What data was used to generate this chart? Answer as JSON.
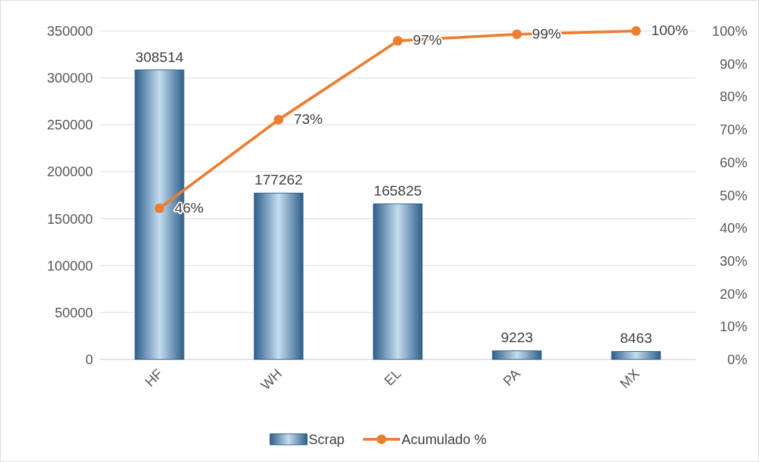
{
  "chart_data": {
    "type": "bar",
    "categories": [
      "HF",
      "WH",
      "EL",
      "PA",
      "MX"
    ],
    "series": [
      {
        "name": "Scrap",
        "color": "#2e5f8a",
        "values": [
          308514,
          177262,
          165825,
          9223,
          8463
        ],
        "value_labels": [
          "308514",
          "177262",
          "165825",
          "9223",
          "8463"
        ]
      },
      {
        "name": "Acumulado %",
        "type": "line",
        "axis": "y2",
        "color": "#ed7d31",
        "values": [
          46,
          73,
          97,
          99,
          100
        ],
        "value_labels": [
          "46%",
          "73%",
          "97%",
          "99%",
          "100%"
        ]
      }
    ],
    "ylim": [
      0,
      350000
    ],
    "yticks": [
      0,
      50000,
      100000,
      150000,
      200000,
      250000,
      300000,
      350000
    ],
    "y2lim": [
      0,
      100
    ],
    "y2ticks": [
      {
        "value": 0,
        "label": "0%"
      },
      {
        "value": 10,
        "label": "10%"
      },
      {
        "value": 20,
        "label": "20%"
      },
      {
        "value": 30,
        "label": "30%"
      },
      {
        "value": 40,
        "label": "40%"
      },
      {
        "value": 50,
        "label": "50%"
      },
      {
        "value": 60,
        "label": "60%"
      },
      {
        "value": 70,
        "label": "70%"
      },
      {
        "value": 80,
        "label": "80%"
      },
      {
        "value": 90,
        "label": "90%"
      },
      {
        "value": 100,
        "label": "100%"
      }
    ],
    "grid": "y",
    "legend": "bottom",
    "marker": "circle",
    "line_style": "solid"
  }
}
